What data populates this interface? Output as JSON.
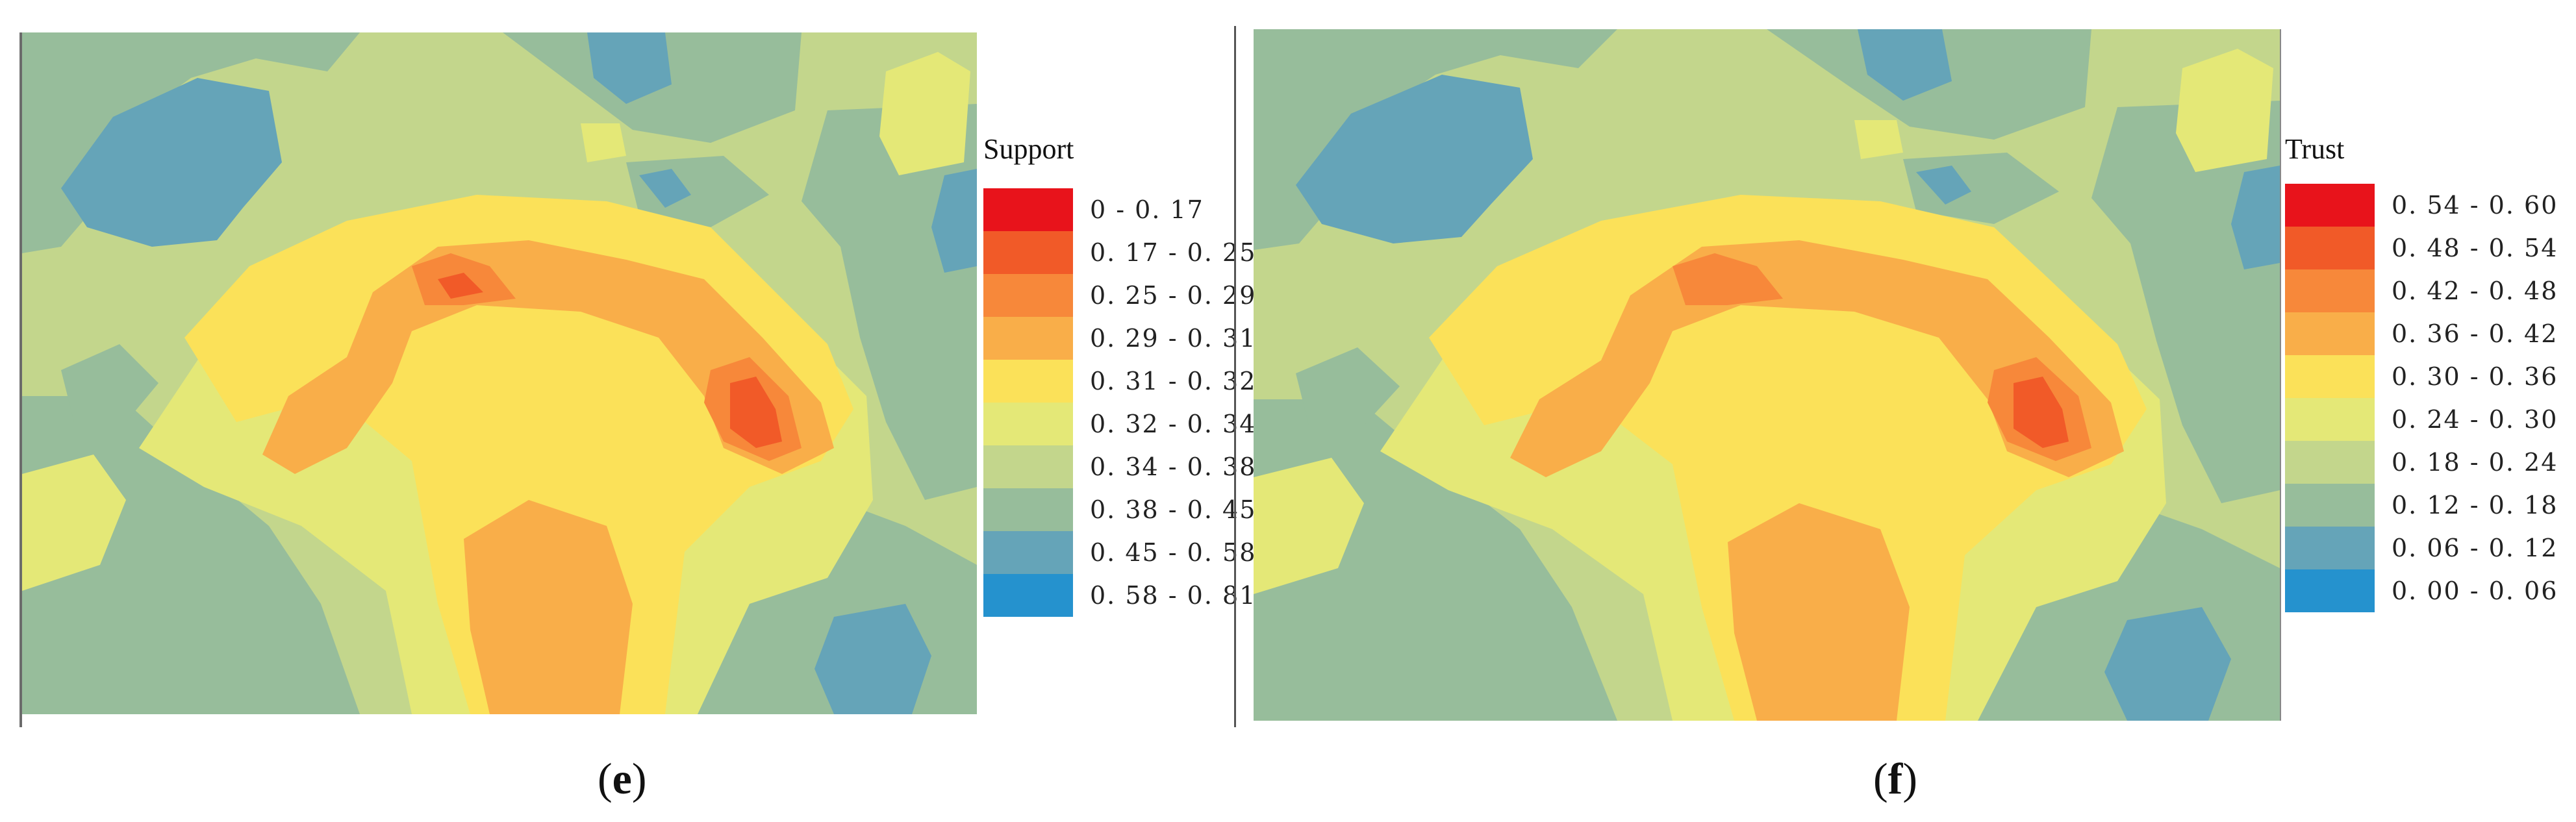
{
  "panels": [
    {
      "caption_open": "(",
      "caption_letter": "e",
      "caption_close": ")",
      "legend_title": "Support",
      "legend": [
        {
          "label": "0 - 0. 17",
          "color": "#e8131b"
        },
        {
          "label": "0. 17 - 0. 25",
          "color": "#f15a28"
        },
        {
          "label": "0. 25 - 0. 29",
          "color": "#f7883a"
        },
        {
          "label": "0. 29 - 0. 31",
          "color": "#f9ae49"
        },
        {
          "label": "0. 31 - 0. 32",
          "color": "#fbe159"
        },
        {
          "label": "0. 32 - 0. 34",
          "color": "#e4e877"
        },
        {
          "label": "0. 34 - 0. 38",
          "color": "#c3d68c"
        },
        {
          "label": "0. 38 - 0. 45",
          "color": "#97bd9b"
        },
        {
          "label": "0. 45 - 0. 58",
          "color": "#65a4b8"
        },
        {
          "label": "0. 58 - 0. 81",
          "color": "#2592ce"
        }
      ]
    },
    {
      "caption_open": "(",
      "caption_letter": "f",
      "caption_close": ")",
      "legend_title": "Trust",
      "legend": [
        {
          "label": "0. 54 - 0. 60",
          "color": "#e8131b"
        },
        {
          "label": "0. 48 - 0. 54",
          "color": "#f15a28"
        },
        {
          "label": "0. 42 - 0. 48",
          "color": "#f7883a"
        },
        {
          "label": "0. 36 - 0. 42",
          "color": "#f9ae49"
        },
        {
          "label": "0. 30 - 0. 36",
          "color": "#fbe159"
        },
        {
          "label": "0. 24 - 0. 30",
          "color": "#e4e877"
        },
        {
          "label": "0. 18 - 0. 24",
          "color": "#c3d68c"
        },
        {
          "label": "0. 12 - 0. 18",
          "color": "#97bd9b"
        },
        {
          "label": "0. 06 - 0. 12",
          "color": "#65a4b8"
        },
        {
          "label": "0. 00 - 0. 06",
          "color": "#2592ce"
        }
      ]
    }
  ]
}
